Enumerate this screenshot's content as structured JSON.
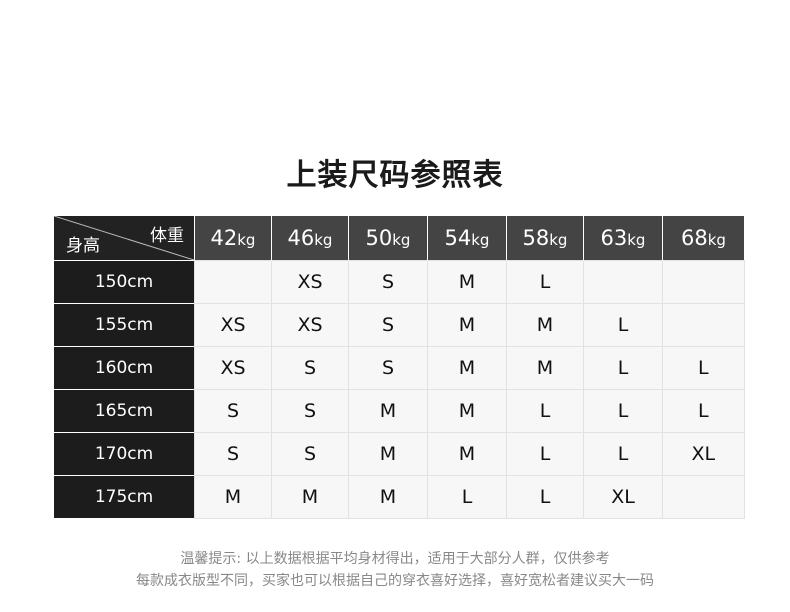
{
  "title": "上装尺码参照表",
  "table": {
    "corner_weight_label": "体重",
    "corner_height_label": "身高",
    "weights": [
      {
        "num": "42",
        "unit": "kg"
      },
      {
        "num": "46",
        "unit": "kg"
      },
      {
        "num": "50",
        "unit": "kg"
      },
      {
        "num": "54",
        "unit": "kg"
      },
      {
        "num": "58",
        "unit": "kg"
      },
      {
        "num": "63",
        "unit": "kg"
      },
      {
        "num": "68",
        "unit": "kg"
      }
    ],
    "rows": [
      {
        "height": "150cm",
        "sizes": [
          "",
          "XS",
          "S",
          "M",
          "L",
          "",
          ""
        ]
      },
      {
        "height": "155cm",
        "sizes": [
          "XS",
          "XS",
          "S",
          "M",
          "M",
          "L",
          ""
        ]
      },
      {
        "height": "160cm",
        "sizes": [
          "XS",
          "S",
          "S",
          "M",
          "M",
          "L",
          "L"
        ]
      },
      {
        "height": "165cm",
        "sizes": [
          "S",
          "S",
          "M",
          "M",
          "L",
          "L",
          "L"
        ]
      },
      {
        "height": "170cm",
        "sizes": [
          "S",
          "S",
          "M",
          "M",
          "L",
          "L",
          "XL"
        ]
      },
      {
        "height": "175cm",
        "sizes": [
          "M",
          "M",
          "M",
          "L",
          "L",
          "XL",
          ""
        ]
      }
    ]
  },
  "notes": [
    "温馨提示: 以上数据根据平均身材得出，适用于大部分人群，仅供参考",
    "每款成衣版型不同，买家也可以根据自己的穿衣喜好选择，喜好宽松者建议买大一码"
  ]
}
